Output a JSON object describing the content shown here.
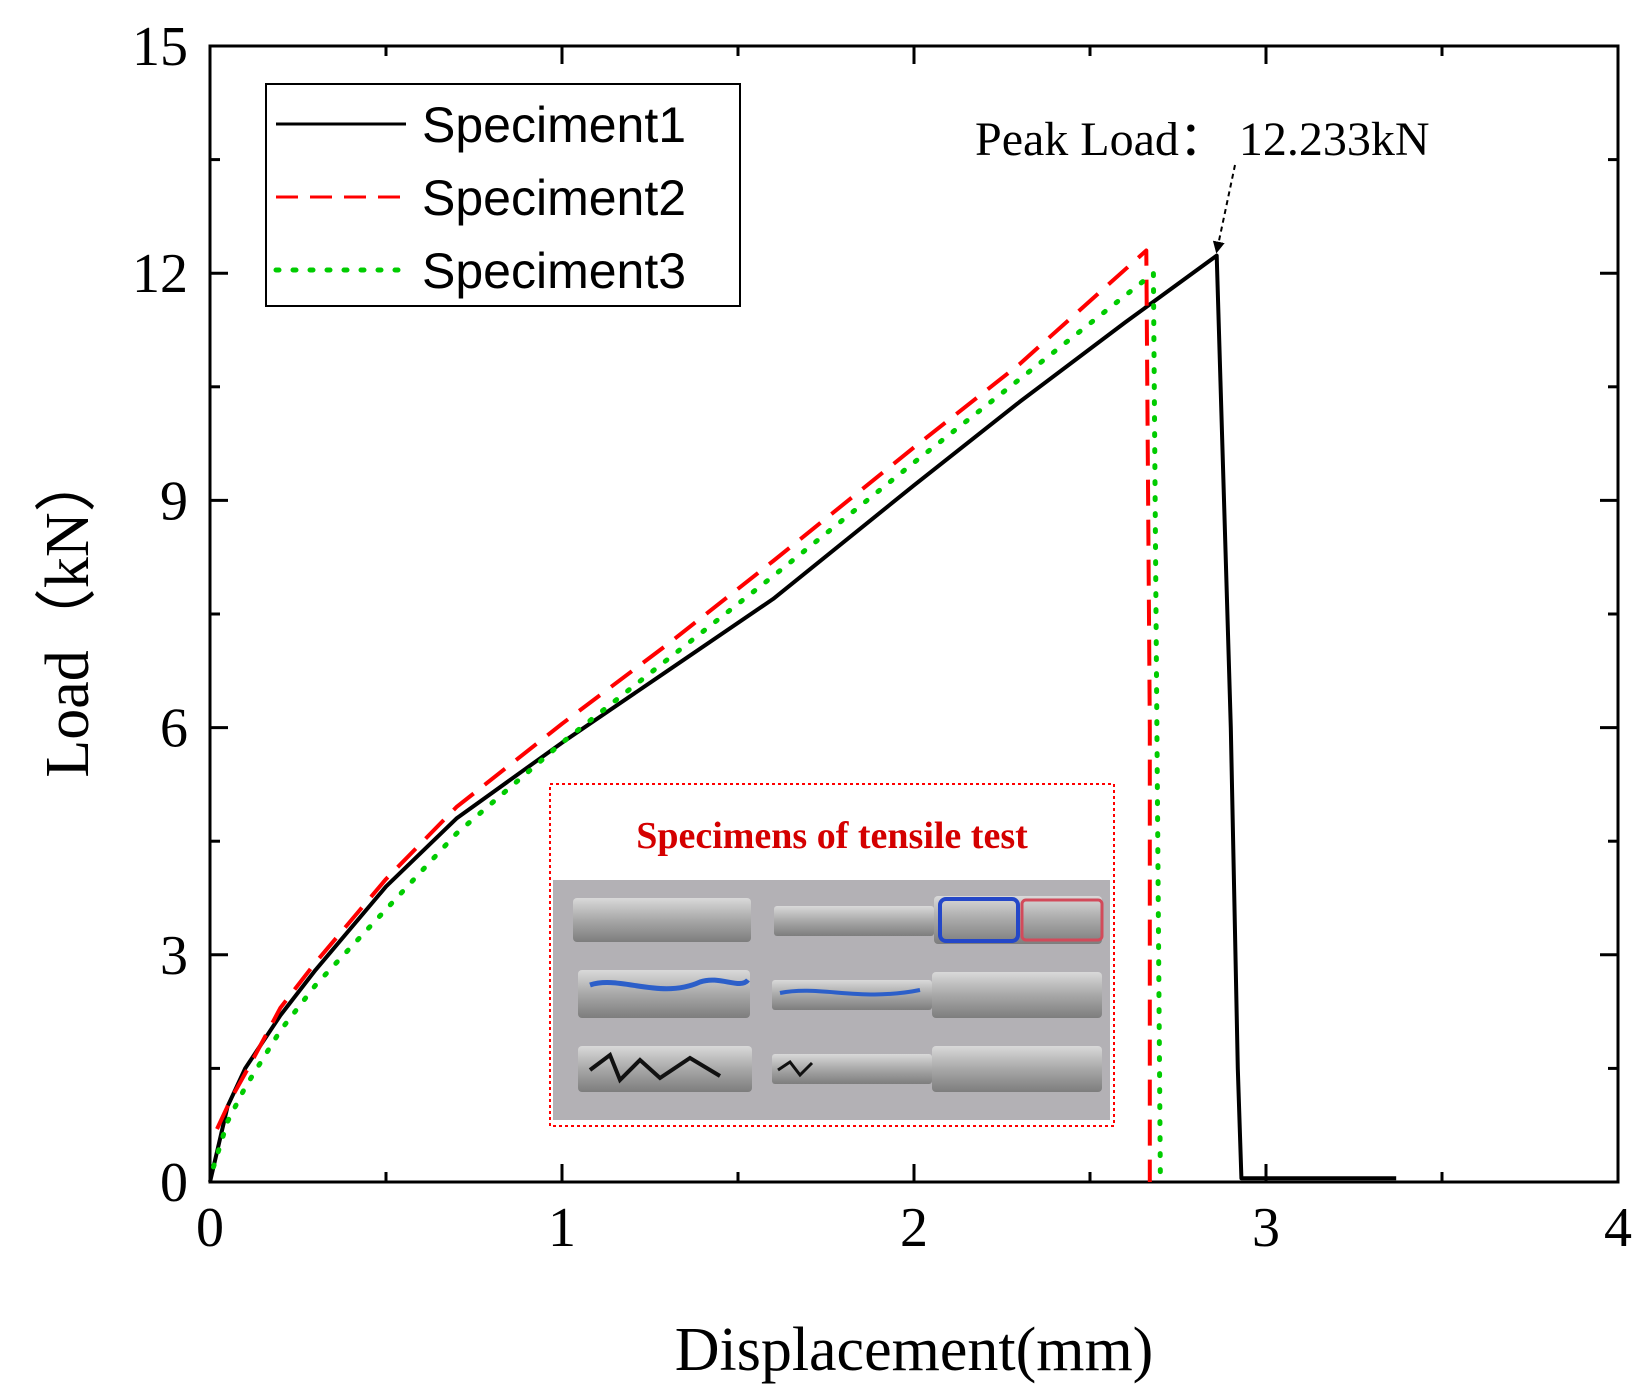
{
  "chart_data": {
    "type": "line",
    "title": "",
    "xlabel": "Displacement(mm)",
    "ylabel": "Load（kN）",
    "xlim": [
      0,
      4
    ],
    "ylim": [
      0,
      15
    ],
    "xticks": [
      "0",
      "1",
      "2",
      "3",
      "4"
    ],
    "yticks": [
      "0",
      "3",
      "6",
      "9",
      "12",
      "15"
    ],
    "x_tick_values": [
      0,
      1,
      2,
      3,
      4
    ],
    "y_tick_values": [
      0,
      3,
      6,
      9,
      12,
      15
    ],
    "grid": false,
    "legend_position": "top-left",
    "series": [
      {
        "name": "Specimen1",
        "color": "#000000",
        "style": "solid",
        "x": [
          0,
          0.05,
          0.1,
          0.2,
          0.3,
          0.5,
          0.7,
          1.0,
          1.3,
          1.6,
          2.0,
          2.3,
          2.6,
          2.86,
          2.9,
          2.92,
          2.93,
          3.0,
          3.37
        ],
        "y": [
          0,
          1.0,
          1.5,
          2.2,
          2.8,
          3.9,
          4.8,
          5.8,
          6.75,
          7.7,
          9.2,
          10.3,
          11.35,
          12.233,
          6.0,
          1.5,
          0.05,
          0.05,
          0.05
        ]
      },
      {
        "name": "Specimen2",
        "color": "#ff0000",
        "style": "dashed",
        "x": [
          0.02,
          0.06,
          0.12,
          0.2,
          0.3,
          0.5,
          0.7,
          1.0,
          1.3,
          1.6,
          2.0,
          2.3,
          2.66,
          2.67,
          2.67
        ],
        "y": [
          0.7,
          1.1,
          1.6,
          2.3,
          2.9,
          4.0,
          4.95,
          6.05,
          7.1,
          8.2,
          9.7,
          10.8,
          12.3,
          6.0,
          0
        ]
      },
      {
        "name": "Specimen3",
        "color": "#00cc00",
        "style": "dotted",
        "x": [
          0.01,
          0.05,
          0.1,
          0.2,
          0.3,
          0.5,
          0.7,
          1.0,
          1.3,
          1.6,
          2.0,
          2.3,
          2.68,
          2.69,
          2.7
        ],
        "y": [
          0.2,
          0.8,
          1.25,
          2.0,
          2.6,
          3.6,
          4.6,
          5.8,
          6.9,
          8.0,
          9.5,
          10.6,
          12.0,
          6.0,
          0
        ]
      }
    ],
    "legend": [
      "Speciment1",
      "Speciment2",
      "Speciment3"
    ],
    "annotations": [
      {
        "text": "Peak Load：  12.233kN",
        "x": 2.86,
        "y": 12.233
      }
    ],
    "inset": {
      "title": "Specimens of tensile test",
      "border_color": "#ff0000",
      "title_color": "#d40000"
    }
  }
}
